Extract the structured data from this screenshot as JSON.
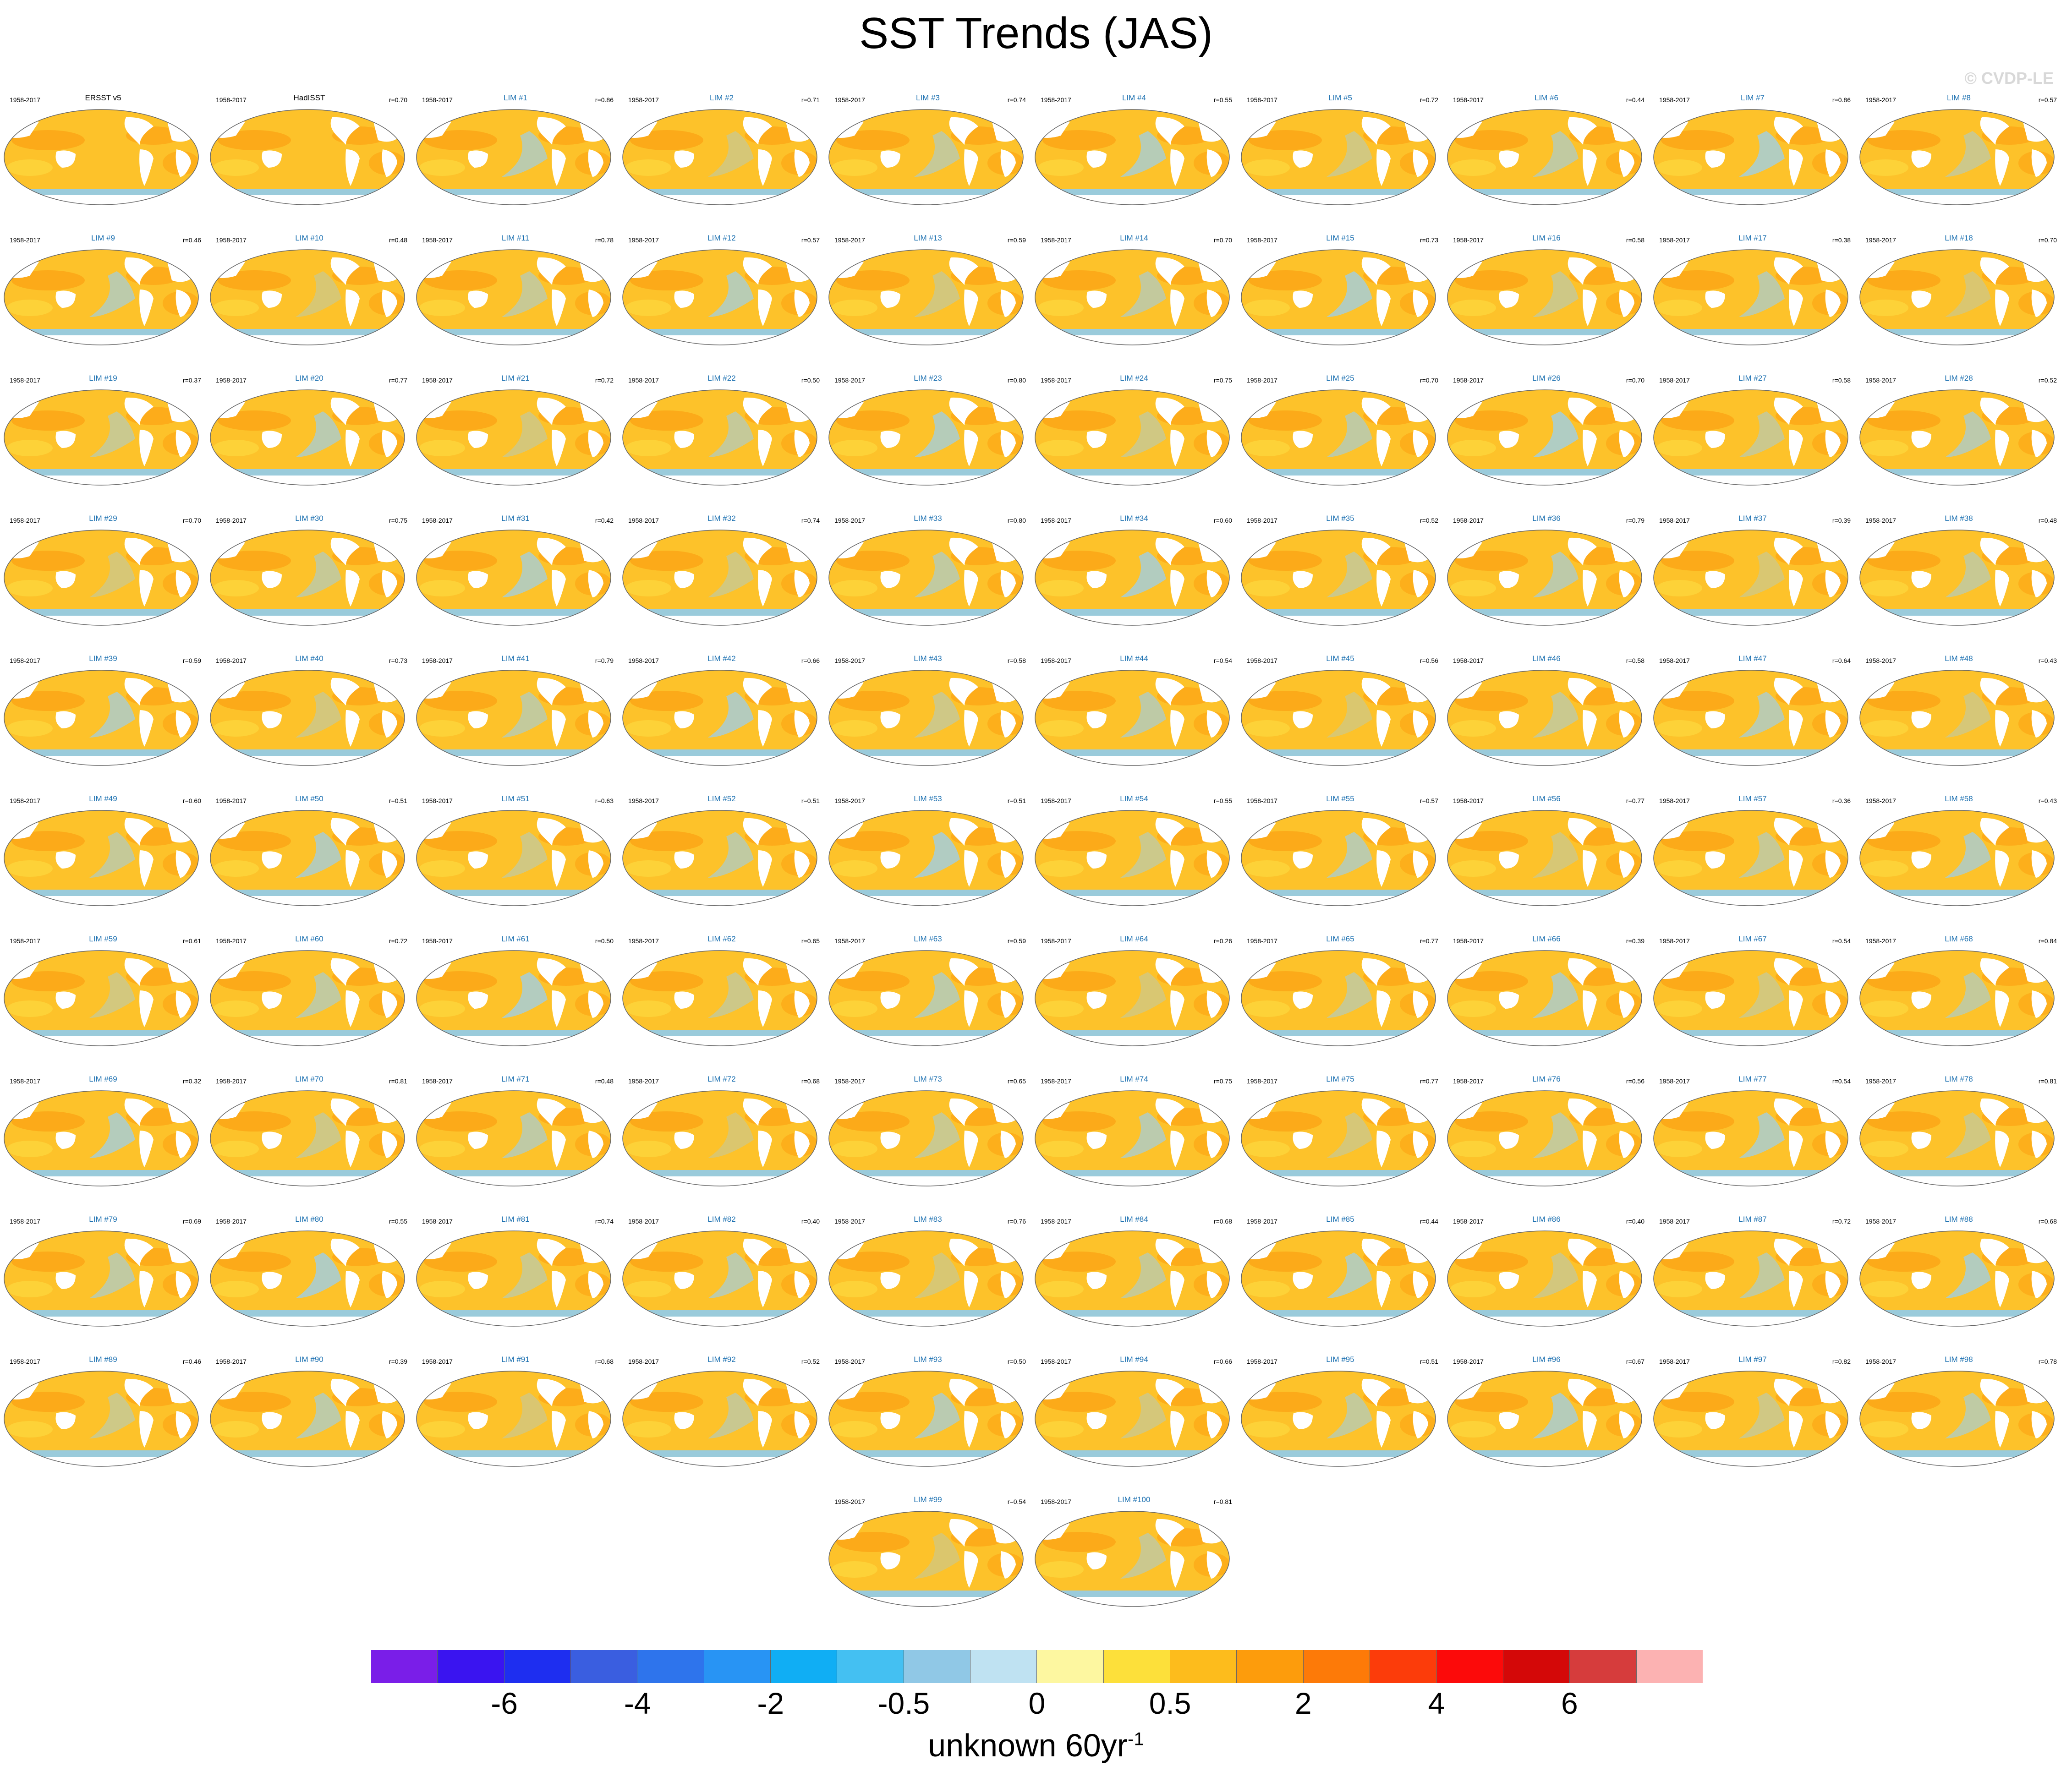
{
  "title": "SST Trends (JAS)",
  "copyright": "© CVDP-LE",
  "period": "1958-2017",
  "chart_data": {
    "type": "heatmap",
    "title": "SST Trends (JAS)",
    "units_label": "unknown 60yr",
    "units_superscript": "-1",
    "colorbar": {
      "colors": [
        "#7a1ee8",
        "#3a14f0",
        "#1e2ef0",
        "#3a5ee0",
        "#2e74ec",
        "#2894f4",
        "#10aef4",
        "#44c0f2",
        "#90c8e6",
        "#bfe2f2",
        "#fdf7a0",
        "#fde03a",
        "#fdbc1c",
        "#fd9c0c",
        "#fd7a08",
        "#fc3c0a",
        "#fc0a0a",
        "#d40808",
        "#d63c3c",
        "#fcb2b2"
      ],
      "tick_labels": [
        "-6",
        "-4",
        "-2",
        "-0.5",
        "0",
        "0.5",
        "2",
        "4",
        "6"
      ],
      "tick_boundaries": [
        2,
        4,
        6,
        8,
        10,
        12,
        14,
        16,
        18
      ]
    },
    "panels": [
      {
        "label": "ERSST v5",
        "r": ""
      },
      {
        "label": "HadISST",
        "r": "r=0.70"
      },
      {
        "label": "LIM #1",
        "r": "r=0.86"
      },
      {
        "label": "LIM #2",
        "r": "r=0.71"
      },
      {
        "label": "LIM #3",
        "r": "r=0.74"
      },
      {
        "label": "LIM #4",
        "r": "r=0.55"
      },
      {
        "label": "LIM #5",
        "r": "r=0.72"
      },
      {
        "label": "LIM #6",
        "r": "r=0.44"
      },
      {
        "label": "LIM #7",
        "r": "r=0.86"
      },
      {
        "label": "LIM #8",
        "r": "r=0.57"
      },
      {
        "label": "LIM #9",
        "r": "r=0.46"
      },
      {
        "label": "LIM #10",
        "r": "r=0.48"
      },
      {
        "label": "LIM #11",
        "r": "r=0.78"
      },
      {
        "label": "LIM #12",
        "r": "r=0.57"
      },
      {
        "label": "LIM #13",
        "r": "r=0.59"
      },
      {
        "label": "LIM #14",
        "r": "r=0.70"
      },
      {
        "label": "LIM #15",
        "r": "r=0.73"
      },
      {
        "label": "LIM #16",
        "r": "r=0.58"
      },
      {
        "label": "LIM #17",
        "r": "r=0.38"
      },
      {
        "label": "LIM #18",
        "r": "r=0.70"
      },
      {
        "label": "LIM #19",
        "r": "r=0.37"
      },
      {
        "label": "LIM #20",
        "r": "r=0.77"
      },
      {
        "label": "LIM #21",
        "r": "r=0.72"
      },
      {
        "label": "LIM #22",
        "r": "r=0.50"
      },
      {
        "label": "LIM #23",
        "r": "r=0.80"
      },
      {
        "label": "LIM #24",
        "r": "r=0.75"
      },
      {
        "label": "LIM #25",
        "r": "r=0.70"
      },
      {
        "label": "LIM #26",
        "r": "r=0.70"
      },
      {
        "label": "LIM #27",
        "r": "r=0.58"
      },
      {
        "label": "LIM #28",
        "r": "r=0.52"
      },
      {
        "label": "LIM #29",
        "r": "r=0.70"
      },
      {
        "label": "LIM #30",
        "r": "r=0.75"
      },
      {
        "label": "LIM #31",
        "r": "r=0.42"
      },
      {
        "label": "LIM #32",
        "r": "r=0.74"
      },
      {
        "label": "LIM #33",
        "r": "r=0.80"
      },
      {
        "label": "LIM #34",
        "r": "r=0.60"
      },
      {
        "label": "LIM #35",
        "r": "r=0.52"
      },
      {
        "label": "LIM #36",
        "r": "r=0.79"
      },
      {
        "label": "LIM #37",
        "r": "r=0.39"
      },
      {
        "label": "LIM #38",
        "r": "r=0.48"
      },
      {
        "label": "LIM #39",
        "r": "r=0.59"
      },
      {
        "label": "LIM #40",
        "r": "r=0.73"
      },
      {
        "label": "LIM #41",
        "r": "r=0.79"
      },
      {
        "label": "LIM #42",
        "r": "r=0.66"
      },
      {
        "label": "LIM #43",
        "r": "r=0.58"
      },
      {
        "label": "LIM #44",
        "r": "r=0.54"
      },
      {
        "label": "LIM #45",
        "r": "r=0.56"
      },
      {
        "label": "LIM #46",
        "r": "r=0.58"
      },
      {
        "label": "LIM #47",
        "r": "r=0.64"
      },
      {
        "label": "LIM #48",
        "r": "r=0.43"
      },
      {
        "label": "LIM #49",
        "r": "r=0.60"
      },
      {
        "label": "LIM #50",
        "r": "r=0.51"
      },
      {
        "label": "LIM #51",
        "r": "r=0.63"
      },
      {
        "label": "LIM #52",
        "r": "r=0.51"
      },
      {
        "label": "LIM #53",
        "r": "r=0.51"
      },
      {
        "label": "LIM #54",
        "r": "r=0.55"
      },
      {
        "label": "LIM #55",
        "r": "r=0.57"
      },
      {
        "label": "LIM #56",
        "r": "r=0.77"
      },
      {
        "label": "LIM #57",
        "r": "r=0.36"
      },
      {
        "label": "LIM #58",
        "r": "r=0.43"
      },
      {
        "label": "LIM #59",
        "r": "r=0.61"
      },
      {
        "label": "LIM #60",
        "r": "r=0.72"
      },
      {
        "label": "LIM #61",
        "r": "r=0.50"
      },
      {
        "label": "LIM #62",
        "r": "r=0.65"
      },
      {
        "label": "LIM #63",
        "r": "r=0.59"
      },
      {
        "label": "LIM #64",
        "r": "r=0.26"
      },
      {
        "label": "LIM #65",
        "r": "r=0.77"
      },
      {
        "label": "LIM #66",
        "r": "r=0.39"
      },
      {
        "label": "LIM #67",
        "r": "r=0.54"
      },
      {
        "label": "LIM #68",
        "r": "r=0.84"
      },
      {
        "label": "LIM #69",
        "r": "r=0.32"
      },
      {
        "label": "LIM #70",
        "r": "r=0.81"
      },
      {
        "label": "LIM #71",
        "r": "r=0.48"
      },
      {
        "label": "LIM #72",
        "r": "r=0.68"
      },
      {
        "label": "LIM #73",
        "r": "r=0.65"
      },
      {
        "label": "LIM #74",
        "r": "r=0.75"
      },
      {
        "label": "LIM #75",
        "r": "r=0.77"
      },
      {
        "label": "LIM #76",
        "r": "r=0.56"
      },
      {
        "label": "LIM #77",
        "r": "r=0.54"
      },
      {
        "label": "LIM #78",
        "r": "r=0.81"
      },
      {
        "label": "LIM #79",
        "r": "r=0.69"
      },
      {
        "label": "LIM #80",
        "r": "r=0.55"
      },
      {
        "label": "LIM #81",
        "r": "r=0.74"
      },
      {
        "label": "LIM #82",
        "r": "r=0.40"
      },
      {
        "label": "LIM #83",
        "r": "r=0.76"
      },
      {
        "label": "LIM #84",
        "r": "r=0.68"
      },
      {
        "label": "LIM #85",
        "r": "r=0.44"
      },
      {
        "label": "LIM #86",
        "r": "r=0.40"
      },
      {
        "label": "LIM #87",
        "r": "r=0.72"
      },
      {
        "label": "LIM #88",
        "r": "r=0.68"
      },
      {
        "label": "LIM #89",
        "r": "r=0.46"
      },
      {
        "label": "LIM #90",
        "r": "r=0.39"
      },
      {
        "label": "LIM #91",
        "r": "r=0.68"
      },
      {
        "label": "LIM #92",
        "r": "r=0.52"
      },
      {
        "label": "LIM #93",
        "r": "r=0.50"
      },
      {
        "label": "LIM #94",
        "r": "r=0.66"
      },
      {
        "label": "LIM #95",
        "r": "r=0.51"
      },
      {
        "label": "LIM #96",
        "r": "r=0.67"
      },
      {
        "label": "LIM #97",
        "r": "r=0.82"
      },
      {
        "label": "LIM #98",
        "r": "r=0.78"
      },
      {
        "label": "LIM #99",
        "r": "r=0.54"
      },
      {
        "label": "LIM #100",
        "r": "r=0.81"
      }
    ]
  }
}
